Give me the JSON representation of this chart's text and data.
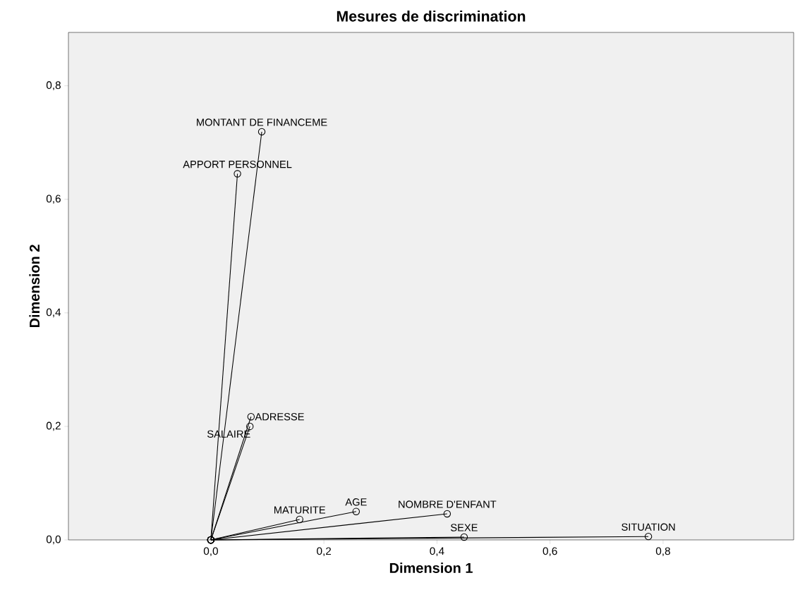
{
  "chart_data": {
    "type": "line",
    "title": "Mesures de discrimination",
    "xlabel": "Dimension 1",
    "ylabel": "Dimension 2",
    "marker": "circle",
    "line_style": "solid",
    "xlim": [
      -0.252,
      1.031
    ],
    "ylim": [
      0,
      0.894
    ],
    "xticks": [
      {
        "value": 0,
        "label": "0,0"
      },
      {
        "value": 0.2,
        "label": "0,2"
      },
      {
        "value": 0.4,
        "label": "0,4"
      },
      {
        "value": 0.6,
        "label": "0,6"
      },
      {
        "value": 0.8,
        "label": "0,8"
      }
    ],
    "yticks": [
      {
        "value": 0,
        "label": "0,0"
      },
      {
        "value": 0.2,
        "label": "0,2"
      },
      {
        "value": 0.4,
        "label": "0,4"
      },
      {
        "value": 0.6,
        "label": "0,6"
      },
      {
        "value": 0.8,
        "label": "0,8"
      }
    ],
    "series": [
      {
        "name": "MONTANT DE FINANCEME",
        "color": "#000000",
        "x": [
          0,
          0.09
        ],
        "values": [
          0,
          0.719
        ]
      },
      {
        "name": "APPORT PERSONNEL",
        "color": "#000000",
        "x": [
          0,
          0.047
        ],
        "values": [
          0,
          0.645
        ]
      },
      {
        "name": "ADRESSE",
        "color": "#000000",
        "x": [
          0,
          0.071
        ],
        "values": [
          0,
          0.217
        ]
      },
      {
        "name": "SALAIRE",
        "color": "#000000",
        "x": [
          0,
          0.069
        ],
        "values": [
          0,
          0.2
        ]
      },
      {
        "name": "MATURITE",
        "color": "#000000",
        "x": [
          0,
          0.157
        ],
        "values": [
          0,
          0.036
        ]
      },
      {
        "name": "AGE",
        "color": "#000000",
        "x": [
          0,
          0.257
        ],
        "values": [
          0,
          0.05
        ]
      },
      {
        "name": "NOMBRE D'ENFANT",
        "color": "#000000",
        "x": [
          0,
          0.418
        ],
        "values": [
          0,
          0.046
        ]
      },
      {
        "name": "SEXE",
        "color": "#000000",
        "x": [
          0,
          0.448
        ],
        "values": [
          0,
          0.005
        ]
      },
      {
        "name": "SITUATION",
        "color": "#000000",
        "x": [
          0,
          0.774
        ],
        "values": [
          0,
          0.006
        ]
      }
    ]
  }
}
